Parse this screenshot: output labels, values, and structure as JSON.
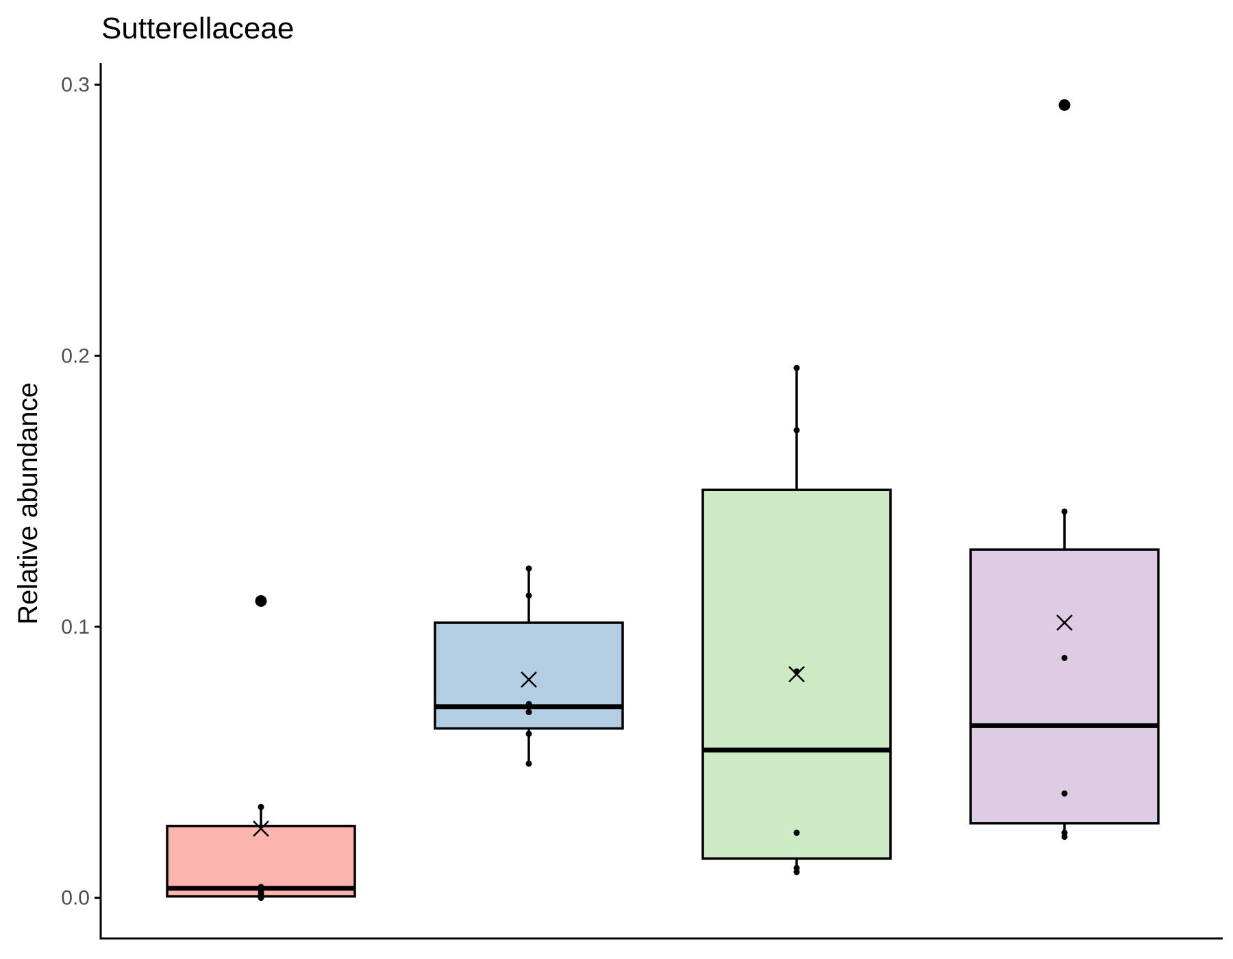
{
  "chart_data": {
    "type": "box",
    "title": "Sutterellaceae",
    "xlabel": "",
    "ylabel": "Relative abundance",
    "ylim": [
      -0.015,
      0.308
    ],
    "yticks": [
      0.0,
      0.1,
      0.2,
      0.3
    ],
    "ytick_labels": [
      "0.0",
      "0.1",
      "0.2",
      "0.3"
    ],
    "x_tick_labels_shown": false,
    "grid": false,
    "legend": "none",
    "groups": [
      {
        "color": "#FBB4AE",
        "q1": 0.0005,
        "median": 0.0035,
        "q3": 0.0265,
        "whisker_low": 0.0,
        "whisker_high": 0.0335,
        "mean": 0.0255,
        "outliers": [
          0.1095
        ],
        "points": [
          0.0,
          0.001,
          0.002,
          0.003,
          0.004,
          0.0335
        ]
      },
      {
        "color": "#B3CDE3",
        "q1": 0.0625,
        "median": 0.0705,
        "q3": 0.1015,
        "whisker_low": 0.0495,
        "whisker_high": 0.1215,
        "mean": 0.0805,
        "outliers": [],
        "points": [
          0.0495,
          0.0605,
          0.0685,
          0.0705,
          0.0715,
          0.1115,
          0.1215
        ]
      },
      {
        "color": "#CCEBC5",
        "q1": 0.0145,
        "median": 0.0545,
        "q3": 0.1505,
        "whisker_low": 0.0095,
        "whisker_high": 0.1955,
        "mean": 0.0825,
        "outliers": [],
        "points": [
          0.0095,
          0.011,
          0.024,
          0.0835,
          0.1725,
          0.1955
        ]
      },
      {
        "color": "#DECBE4",
        "q1": 0.0275,
        "median": 0.0635,
        "q3": 0.1285,
        "whisker_low": 0.0225,
        "whisker_high": 0.1425,
        "mean": 0.1015,
        "outliers": [
          0.2925
        ],
        "points": [
          0.0225,
          0.024,
          0.0385,
          0.0885,
          0.1425
        ]
      }
    ]
  }
}
